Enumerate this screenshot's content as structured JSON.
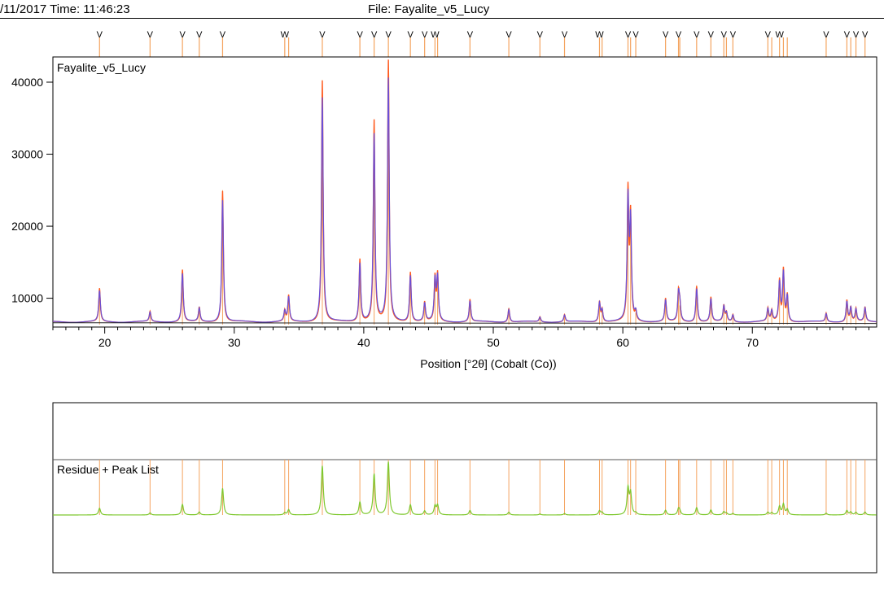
{
  "header": {
    "date_time": "/11/2017 Time: 11:46:23",
    "file": "File: Fayalite_v5_Lucy"
  },
  "colors": {
    "observed": "#ff5a1e",
    "calculated": "#6a4fd6",
    "background": "#222222",
    "peak_line": "#f4a460",
    "residue": "#7ec82e",
    "frame": "#000000"
  },
  "chart_data": [
    {
      "type": "line",
      "title": "Fayalite_v5_Lucy",
      "xlabel": "Position [°2θ] (Cobalt (Co))",
      "xlim": [
        16,
        79.6
      ],
      "ylim": [
        6000,
        43500
      ],
      "xticks": [
        20,
        30,
        40,
        50,
        60,
        70
      ],
      "yticks": [
        10000,
        20000,
        30000,
        40000
      ],
      "baseline": 6800,
      "peaks": [
        {
          "x": 19.6,
          "y": 11400,
          "mark": "V"
        },
        {
          "x": 23.5,
          "y": 8200,
          "mark": "V"
        },
        {
          "x": 26.0,
          "y": 14000,
          "mark": "V"
        },
        {
          "x": 27.3,
          "y": 8800,
          "mark": "V"
        },
        {
          "x": 29.1,
          "y": 25000,
          "mark": "V"
        },
        {
          "x": 33.9,
          "y": 8300,
          "mark": "W"
        },
        {
          "x": 34.2,
          "y": 10400,
          "mark": ""
        },
        {
          "x": 36.8,
          "y": 40300,
          "mark": "V"
        },
        {
          "x": 39.7,
          "y": 15500,
          "mark": "V"
        },
        {
          "x": 40.8,
          "y": 34700,
          "mark": "V"
        },
        {
          "x": 41.9,
          "y": 43000,
          "mark": "V"
        },
        {
          "x": 43.6,
          "y": 13700,
          "mark": "V"
        },
        {
          "x": 44.7,
          "y": 9500,
          "mark": "V"
        },
        {
          "x": 45.5,
          "y": 12800,
          "mark": "W"
        },
        {
          "x": 45.7,
          "y": 13200,
          "mark": ""
        },
        {
          "x": 48.2,
          "y": 9900,
          "mark": "V"
        },
        {
          "x": 51.2,
          "y": 8700,
          "mark": "V"
        },
        {
          "x": 53.6,
          "y": 7500,
          "mark": "V"
        },
        {
          "x": 55.5,
          "y": 7800,
          "mark": "V"
        },
        {
          "x": 58.2,
          "y": 9600,
          "mark": "W"
        },
        {
          "x": 58.4,
          "y": 8500,
          "mark": ""
        },
        {
          "x": 60.4,
          "y": 24600,
          "mark": "V"
        },
        {
          "x": 60.6,
          "y": 21000,
          "mark": ""
        },
        {
          "x": 61.0,
          "y": 8000,
          "mark": "V"
        },
        {
          "x": 63.3,
          "y": 10000,
          "mark": "V"
        },
        {
          "x": 64.3,
          "y": 10800,
          "mark": "V"
        },
        {
          "x": 64.4,
          "y": 9000,
          "mark": ""
        },
        {
          "x": 65.7,
          "y": 11800,
          "mark": "V"
        },
        {
          "x": 66.8,
          "y": 10200,
          "mark": "V"
        },
        {
          "x": 67.8,
          "y": 9000,
          "mark": "V"
        },
        {
          "x": 68.0,
          "y": 8000,
          "mark": ""
        },
        {
          "x": 68.5,
          "y": 7800,
          "mark": "V"
        },
        {
          "x": 71.2,
          "y": 8600,
          "mark": "V"
        },
        {
          "x": 71.5,
          "y": 8300,
          "mark": ""
        },
        {
          "x": 72.1,
          "y": 12500,
          "mark": "W"
        },
        {
          "x": 72.4,
          "y": 14000,
          "mark": ""
        },
        {
          "x": 72.7,
          "y": 10500,
          "mark": ""
        },
        {
          "x": 75.7,
          "y": 8000,
          "mark": "V"
        },
        {
          "x": 77.3,
          "y": 9800,
          "mark": "V"
        },
        {
          "x": 77.6,
          "y": 8800,
          "mark": ""
        },
        {
          "x": 78.0,
          "y": 8600,
          "mark": "V"
        },
        {
          "x": 78.7,
          "y": 8800,
          "mark": "V"
        }
      ]
    },
    {
      "type": "line",
      "title": "Residue + Peak List",
      "xlim": [
        16,
        79.6
      ],
      "series_note": ""
    }
  ]
}
